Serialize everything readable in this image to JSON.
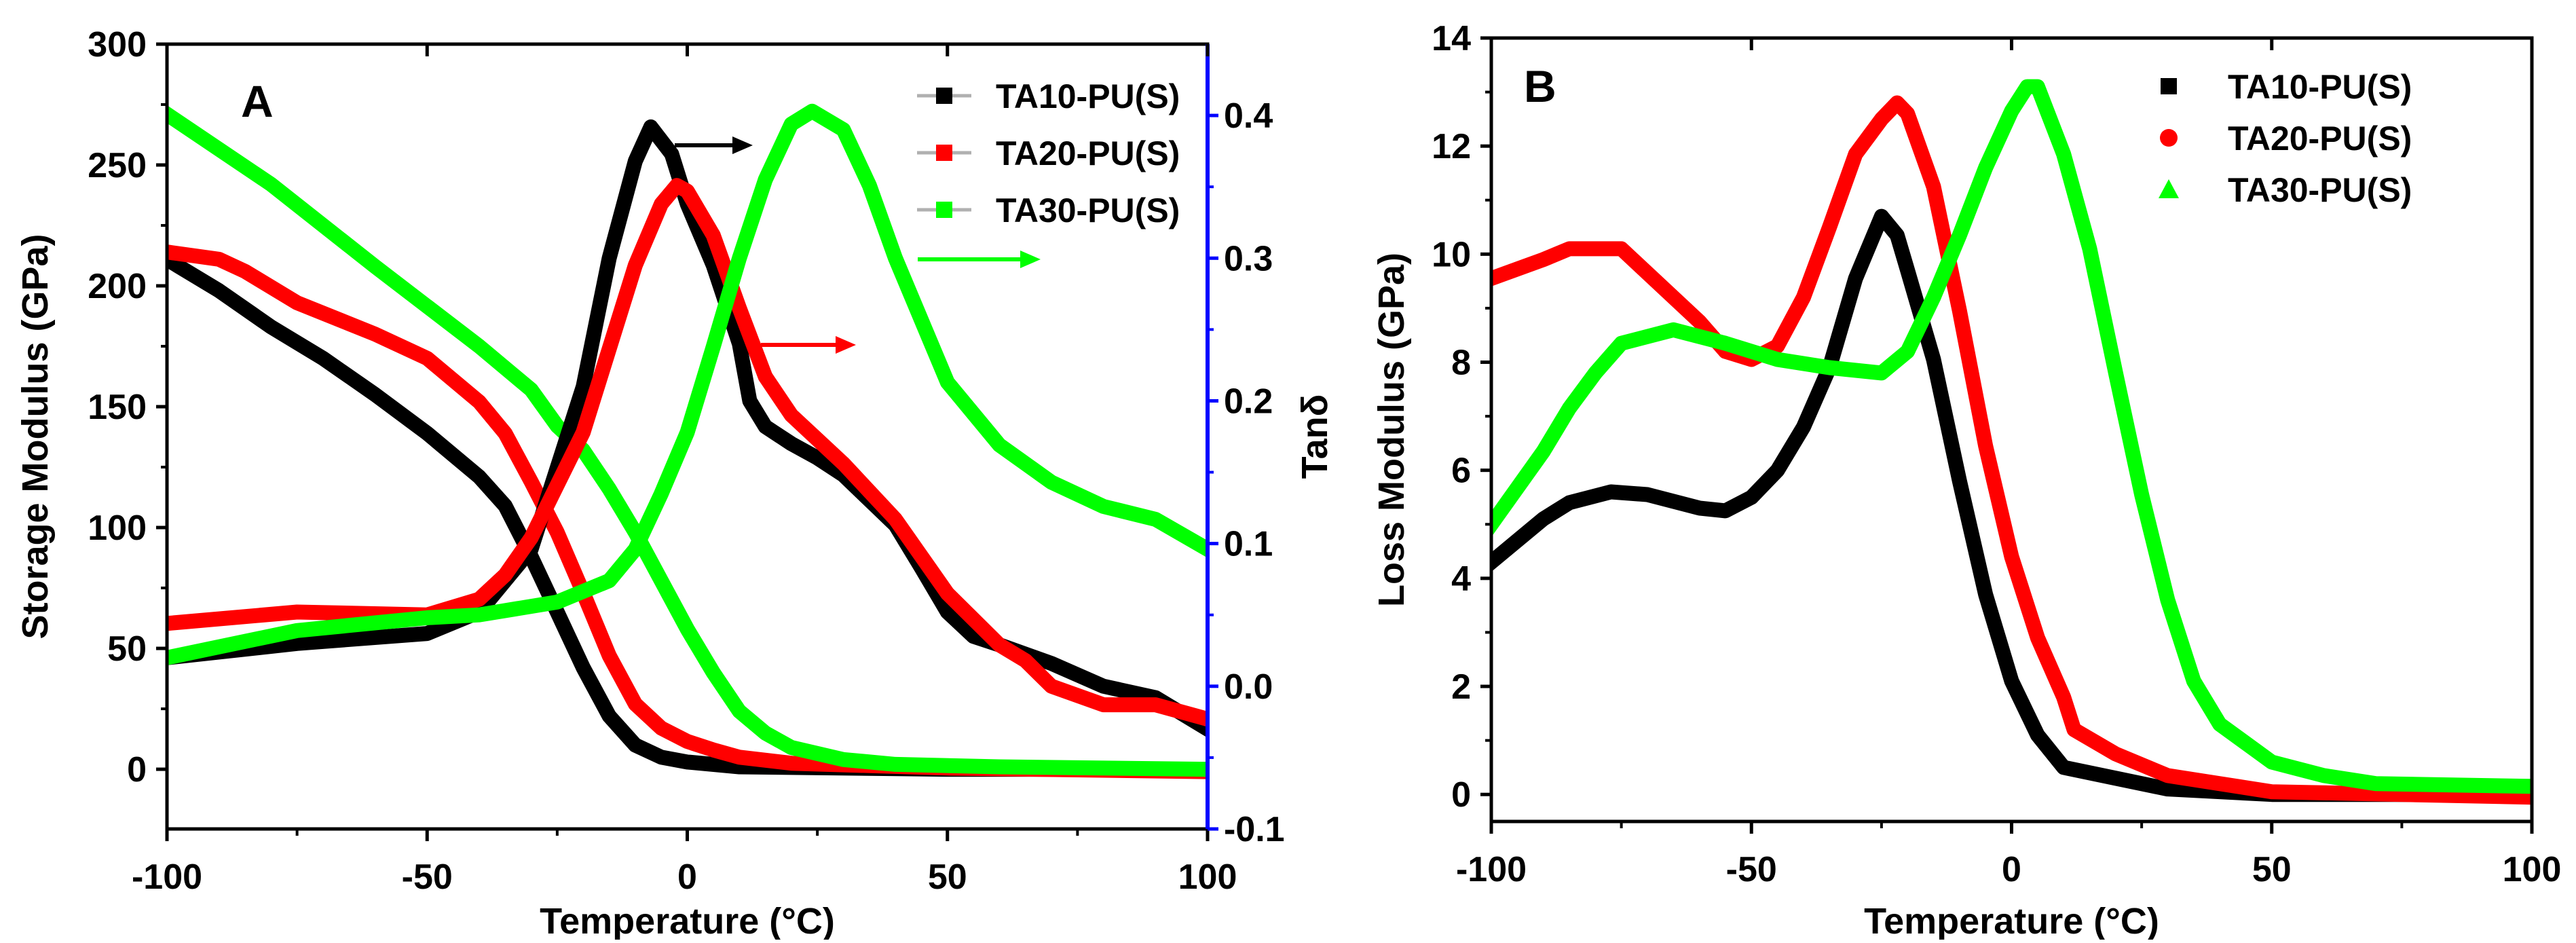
{
  "chart_data": [
    {
      "panel": "A",
      "type": "line",
      "xlabel": "Temperature (°C)",
      "xlabel_parts": {
        "pre": "Temperature (",
        "sup": "o",
        "post": "C)"
      },
      "ylabel": "Storage Modulus (GPa)",
      "y2label": "Tanδ",
      "xlim": [
        -100,
        100
      ],
      "ylim": [
        -24.7,
        300
      ],
      "y2lim": [
        -0.1,
        0.45
      ],
      "xticks": [
        "-100",
        "-50",
        "0",
        "50",
        "100"
      ],
      "xtick_values": [
        -100,
        -50,
        0,
        50,
        100
      ],
      "yticks": [
        "300",
        "250",
        "200",
        "150",
        "100",
        "50",
        "0"
      ],
      "ytick_values": [
        300,
        250,
        200,
        150,
        100,
        50,
        0
      ],
      "y2ticks": [
        "0.4",
        "0.3",
        "0.2",
        "0.1",
        "0.0",
        "-0.1"
      ],
      "y2tick_values": [
        0.4,
        0.3,
        0.2,
        0.1,
        0.0,
        -0.1
      ],
      "legend": [
        "TA10-PU(S)",
        "TA20-PU(S)",
        "TA30-PU(S)"
      ],
      "legend_placement": "top-right",
      "series": [
        {
          "name": "TA10-PU(S) storage modulus",
          "color": "#000000",
          "axis": "left",
          "points": [
            [
              -100,
              211
            ],
            [
              -90,
              198
            ],
            [
              -80,
              183
            ],
            [
              -70,
              170
            ],
            [
              -60,
              155
            ],
            [
              -50,
              139
            ],
            [
              -40,
              121
            ],
            [
              -35,
              109
            ],
            [
              -30,
              88
            ],
            [
              -25,
              65
            ],
            [
              -20,
              42
            ],
            [
              -15,
              22
            ],
            [
              -10,
              10
            ],
            [
              -5,
              5
            ],
            [
              0,
              3
            ],
            [
              10,
              1
            ],
            [
              50,
              0
            ],
            [
              100,
              0
            ]
          ]
        },
        {
          "name": "TA20-PU(S) storage modulus",
          "color": "#ff0000",
          "axis": "left",
          "points": [
            [
              -100,
              214
            ],
            [
              -90,
              211
            ],
            [
              -85,
              206
            ],
            [
              -75,
              193
            ],
            [
              -60,
              180
            ],
            [
              -50,
              170
            ],
            [
              -40,
              152
            ],
            [
              -35,
              139
            ],
            [
              -30,
              119
            ],
            [
              -25,
              98
            ],
            [
              -20,
              73
            ],
            [
              -15,
              47
            ],
            [
              -10,
              27
            ],
            [
              -5,
              17
            ],
            [
              0,
              11.5
            ],
            [
              5,
              8
            ],
            [
              10,
              5
            ],
            [
              20,
              2.5
            ],
            [
              50,
              0.5
            ],
            [
              100,
              -1
            ]
          ]
        },
        {
          "name": "TA30-PU(S) storage modulus",
          "color": "#00ff00",
          "axis": "left",
          "points": [
            [
              -100,
              271
            ],
            [
              -80,
              242
            ],
            [
              -60,
              208
            ],
            [
              -40,
              175
            ],
            [
              -30,
              157
            ],
            [
              -25,
              142
            ],
            [
              -20,
              132
            ],
            [
              -15,
              116
            ],
            [
              -10,
              98
            ],
            [
              -5,
              78
            ],
            [
              0,
              58
            ],
            [
              5,
              40
            ],
            [
              10,
              24
            ],
            [
              15,
              15
            ],
            [
              20,
              9
            ],
            [
              30,
              4
            ],
            [
              40,
              2
            ],
            [
              60,
              1
            ],
            [
              100,
              0
            ]
          ]
        },
        {
          "name": "TA10-PU(S) tan delta",
          "color": "#000000",
          "axis": "right",
          "points": [
            [
              -100,
              0.02
            ],
            [
              -75,
              0.03
            ],
            [
              -50,
              0.037
            ],
            [
              -40,
              0.052
            ],
            [
              -30,
              0.096
            ],
            [
              -20,
              0.21
            ],
            [
              -15,
              0.3
            ],
            [
              -10,
              0.368
            ],
            [
              -7,
              0.392
            ],
            [
              -3,
              0.373
            ],
            [
              0,
              0.338
            ],
            [
              5,
              0.295
            ],
            [
              10,
              0.24
            ],
            [
              12,
              0.2
            ],
            [
              15,
              0.182
            ],
            [
              20,
              0.17
            ],
            [
              25,
              0.16
            ],
            [
              30,
              0.148
            ],
            [
              40,
              0.113
            ],
            [
              45,
              0.083
            ],
            [
              50,
              0.052
            ],
            [
              55,
              0.035
            ],
            [
              60,
              0.029
            ],
            [
              70,
              0.016
            ],
            [
              80,
              0
            ],
            [
              90,
              -0.008
            ],
            [
              100,
              -0.03
            ]
          ]
        },
        {
          "name": "TA20-PU(S) tan delta",
          "color": "#ff0000",
          "axis": "right",
          "points": [
            [
              -100,
              0.044
            ],
            [
              -75,
              0.052
            ],
            [
              -50,
              0.05
            ],
            [
              -40,
              0.061
            ],
            [
              -35,
              0.078
            ],
            [
              -30,
              0.104
            ],
            [
              -20,
              0.178
            ],
            [
              -10,
              0.295
            ],
            [
              -5,
              0.338
            ],
            [
              -2,
              0.351
            ],
            [
              0,
              0.347
            ],
            [
              5,
              0.316
            ],
            [
              10,
              0.265
            ],
            [
              15,
              0.217
            ],
            [
              20,
              0.19
            ],
            [
              30,
              0.156
            ],
            [
              40,
              0.117
            ],
            [
              50,
              0.065
            ],
            [
              60,
              0.029
            ],
            [
              65,
              0.018
            ],
            [
              70,
              0
            ],
            [
              80,
              -0.013
            ],
            [
              90,
              -0.013
            ],
            [
              100,
              -0.023
            ]
          ]
        },
        {
          "name": "TA30-PU(S) tan delta",
          "color": "#00ff00",
          "axis": "right",
          "points": [
            [
              -100,
              0.02
            ],
            [
              -75,
              0.039
            ],
            [
              -50,
              0.048
            ],
            [
              -40,
              0.05
            ],
            [
              -25,
              0.059
            ],
            [
              -15,
              0.074
            ],
            [
              -10,
              0.096
            ],
            [
              -5,
              0.135
            ],
            [
              0,
              0.178
            ],
            [
              5,
              0.238
            ],
            [
              10,
              0.3
            ],
            [
              15,
              0.355
            ],
            [
              20,
              0.394
            ],
            [
              24,
              0.403
            ],
            [
              30,
              0.39
            ],
            [
              35,
              0.351
            ],
            [
              40,
              0.3
            ],
            [
              50,
              0.213
            ],
            [
              60,
              0.169
            ],
            [
              70,
              0.143
            ],
            [
              80,
              0.126
            ],
            [
              90,
              0.117
            ],
            [
              100,
              0.096
            ]
          ]
        }
      ],
      "colors": {
        "right_axis": "#0000ff",
        "legend_line": "#b0b0b0"
      }
    },
    {
      "panel": "B",
      "type": "scatter",
      "xlabel": "Temperature (°C)",
      "xlabel_parts": {
        "pre": "Temperature (",
        "sup": "o",
        "post": "C)"
      },
      "ylabel": "Loss Modulus (GPa)",
      "xlim": [
        -100,
        100
      ],
      "ylim": [
        -0.5,
        14
      ],
      "xticks": [
        "-100",
        "-50",
        "0",
        "50",
        "100"
      ],
      "xtick_values": [
        -100,
        -50,
        0,
        50,
        100
      ],
      "yticks": [
        "14",
        "12",
        "10",
        "8",
        "6",
        "4",
        "2",
        "0"
      ],
      "ytick_values": [
        14,
        12,
        10,
        8,
        6,
        4,
        2,
        0
      ],
      "legend": [
        "TA10-PU(S)",
        "TA20-PU(S)",
        "TA30-PU(S)"
      ],
      "legend_markers": [
        "square",
        "circle",
        "triangle"
      ],
      "legend_placement": "top-right",
      "series": [
        {
          "name": "TA10-PU(S)",
          "color": "#000000",
          "points": [
            [
              -100,
              4.3
            ],
            [
              -90,
              5.1
            ],
            [
              -85,
              5.4
            ],
            [
              -77,
              5.6
            ],
            [
              -70,
              5.55
            ],
            [
              -60,
              5.3
            ],
            [
              -55,
              5.25
            ],
            [
              -50,
              5.5
            ],
            [
              -45,
              6
            ],
            [
              -40,
              6.8
            ],
            [
              -35,
              7.9
            ],
            [
              -30,
              9.55
            ],
            [
              -25,
              10.7
            ],
            [
              -22,
              10.35
            ],
            [
              -20,
              9.7
            ],
            [
              -15,
              8.05
            ],
            [
              -10,
              5.8
            ],
            [
              -5,
              3.7
            ],
            [
              0,
              2.1
            ],
            [
              5,
              1.1
            ],
            [
              10,
              0.5
            ],
            [
              20,
              0.3
            ],
            [
              30,
              0.1
            ],
            [
              50,
              0
            ],
            [
              100,
              0
            ]
          ]
        },
        {
          "name": "TA20-PU(S)",
          "color": "#ff0000",
          "points": [
            [
              -100,
              9.55
            ],
            [
              -90,
              9.9
            ],
            [
              -85,
              10.1
            ],
            [
              -75,
              10.1
            ],
            [
              -70,
              9.65
            ],
            [
              -60,
              8.75
            ],
            [
              -55,
              8.2
            ],
            [
              -50,
              8.05
            ],
            [
              -45,
              8.3
            ],
            [
              -40,
              9.2
            ],
            [
              -35,
              10.5
            ],
            [
              -30,
              11.85
            ],
            [
              -25,
              12.5
            ],
            [
              -22,
              12.8
            ],
            [
              -20,
              12.6
            ],
            [
              -15,
              11.25
            ],
            [
              -10,
              8.95
            ],
            [
              -5,
              6.45
            ],
            [
              0,
              4.4
            ],
            [
              5,
              2.9
            ],
            [
              10,
              1.8
            ],
            [
              12,
              1.2
            ],
            [
              20,
              0.75
            ],
            [
              30,
              0.35
            ],
            [
              50,
              0.05
            ],
            [
              100,
              -0.05
            ]
          ]
        },
        {
          "name": "TA30-PU(S)",
          "color": "#00ff00",
          "points": [
            [
              -100,
              5.0
            ],
            [
              -90,
              6.35
            ],
            [
              -85,
              7.15
            ],
            [
              -80,
              7.8
            ],
            [
              -75,
              8.35
            ],
            [
              -65,
              8.6
            ],
            [
              -55,
              8.35
            ],
            [
              -45,
              8.05
            ],
            [
              -35,
              7.9
            ],
            [
              -25,
              7.8
            ],
            [
              -20,
              8.2
            ],
            [
              -15,
              9.2
            ],
            [
              -10,
              10.35
            ],
            [
              -5,
              11.6
            ],
            [
              0,
              12.65
            ],
            [
              3,
              13.1
            ],
            [
              5,
              13.1
            ],
            [
              10,
              11.85
            ],
            [
              15,
              10.1
            ],
            [
              20,
              7.8
            ],
            [
              25,
              5.55
            ],
            [
              30,
              3.6
            ],
            [
              35,
              2.1
            ],
            [
              40,
              1.3
            ],
            [
              50,
              0.6
            ],
            [
              60,
              0.35
            ],
            [
              70,
              0.2
            ],
            [
              100,
              0.15
            ]
          ]
        }
      ]
    }
  ]
}
